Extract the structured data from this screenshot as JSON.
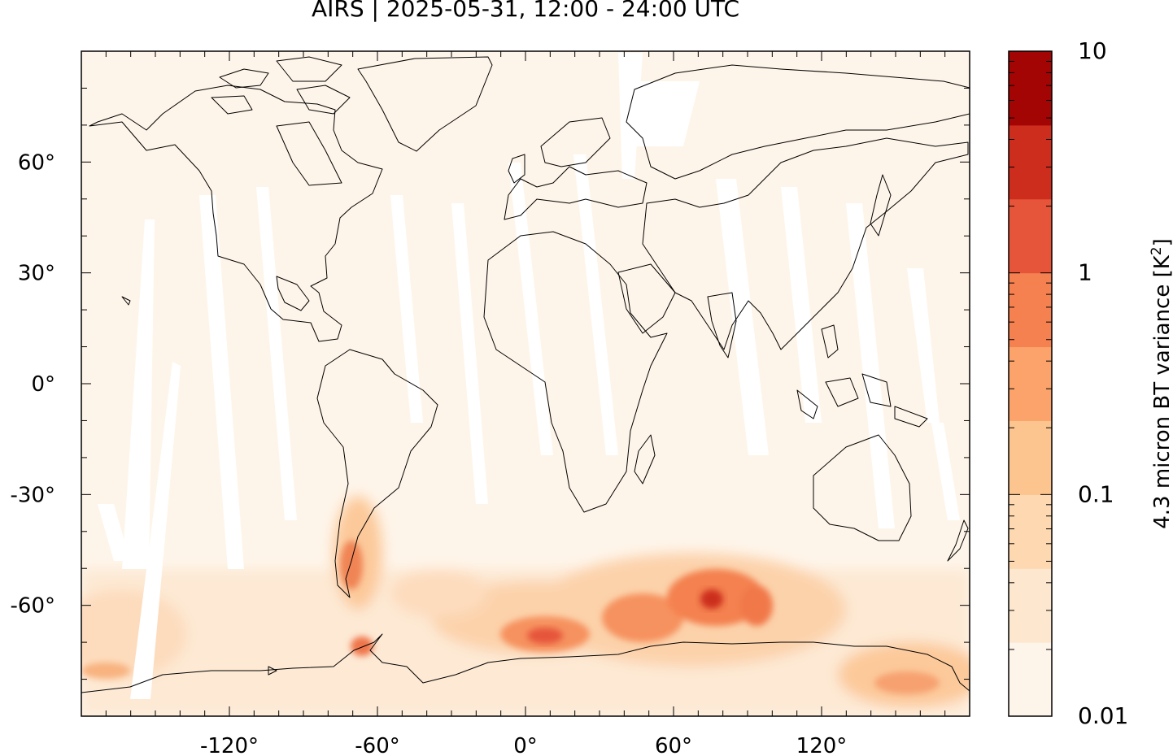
{
  "title": "AIRS | 2025-05-31, 12:00 - 24:00 UTC",
  "map": {
    "projection": "equirectangular",
    "lon_range": [
      -180,
      180
    ],
    "lat_range": [
      -90,
      90
    ],
    "lon_ticks": [
      "-120°",
      "-60°",
      "0°",
      "60°",
      "120°"
    ],
    "lon_tick_values": [
      -120,
      -60,
      0,
      60,
      120
    ],
    "lat_ticks": [
      "60°",
      "30°",
      "0°",
      "-30°",
      "-60°"
    ],
    "lat_tick_values": [
      60,
      30,
      0,
      -30,
      -60
    ],
    "coastlines": true,
    "swath_gaps": "white diagonal bands (no data)"
  },
  "colorbar": {
    "label": "4.3 micron BT variance [K",
    "label_sup": "2",
    "label_end": "]",
    "scale": "log",
    "tick_labels": [
      "10",
      "1",
      "0.1",
      "0.01"
    ],
    "tick_values": [
      10,
      1,
      0.1,
      0.01
    ],
    "colors": [
      "#fdf4ea",
      "#fde7cf",
      "#fdd8b0",
      "#fcc48f",
      "#fba36a",
      "#f4814f",
      "#e6553a",
      "#cc2d1d",
      "#a30404"
    ]
  }
}
